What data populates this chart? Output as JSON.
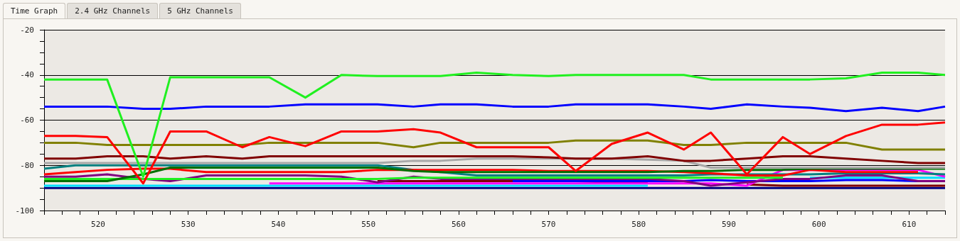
{
  "chart_data": {
    "type": "line",
    "annotations": [
      "Time Graph",
      "2.4 GHz Channels",
      "5 GHz Channels"
    ],
    "x": [
      514,
      517.5,
      521,
      525,
      528,
      532,
      536,
      539,
      543,
      547,
      551,
      555,
      558,
      562,
      566,
      570,
      573,
      577,
      581,
      585,
      588,
      592,
      596,
      599,
      603,
      607,
      611,
      614
    ],
    "xlim": [
      514,
      614
    ],
    "xticks": [
      {
        "value": 514,
        "label": null
      },
      {
        "value": 516,
        "label": null
      },
      {
        "value": 518,
        "label": null
      },
      520,
      {
        "value": 522,
        "label": null
      },
      {
        "value": 524,
        "label": null
      },
      {
        "value": 526,
        "label": null
      },
      {
        "value": 528,
        "label": null
      },
      530,
      {
        "value": 532,
        "label": null
      },
      {
        "value": 534,
        "label": null
      },
      {
        "value": 536,
        "label": null
      },
      {
        "value": 538,
        "label": null
      },
      540,
      {
        "value": 542,
        "label": null
      },
      {
        "value": 544,
        "label": null
      },
      {
        "value": 546,
        "label": null
      },
      {
        "value": 548,
        "label": null
      },
      550,
      {
        "value": 552,
        "label": null
      },
      {
        "value": 554,
        "label": null
      },
      {
        "value": 556,
        "label": null
      },
      {
        "value": 558,
        "label": null
      },
      560,
      {
        "value": 562,
        "label": null
      },
      {
        "value": 564,
        "label": null
      },
      {
        "value": 566,
        "label": null
      },
      {
        "value": 568,
        "label": null
      },
      570,
      {
        "value": 572,
        "label": null
      },
      {
        "value": 574,
        "label": null
      },
      {
        "value": 576,
        "label": null
      },
      {
        "value": 578,
        "label": null
      },
      580,
      {
        "value": 582,
        "label": null
      },
      {
        "value": 584,
        "label": null
      },
      {
        "value": 586,
        "label": null
      },
      {
        "value": 588,
        "label": null
      },
      590,
      {
        "value": 592,
        "label": null
      },
      {
        "value": 594,
        "label": null
      },
      {
        "value": 596,
        "label": null
      },
      {
        "value": 598,
        "label": null
      },
      600,
      {
        "value": 602,
        "label": null
      },
      {
        "value": 604,
        "label": null
      },
      {
        "value": 606,
        "label": null
      },
      {
        "value": 608,
        "label": null
      },
      610,
      {
        "value": 612,
        "label": null
      },
      {
        "value": 614,
        "label": null
      }
    ],
    "ylim": [
      -100,
      -20
    ],
    "yticks": [
      -100,
      {
        "value": -95,
        "label": null
      },
      {
        "value": -90,
        "label": null
      },
      {
        "value": -85,
        "label": null
      },
      -80,
      {
        "value": -75,
        "label": null
      },
      {
        "value": -70,
        "label": null
      },
      {
        "value": -65,
        "label": null
      },
      -60,
      {
        "value": -55,
        "label": null
      },
      {
        "value": -50,
        "label": null
      },
      {
        "value": -45,
        "label": null
      },
      -40,
      {
        "value": -35,
        "label": null
      },
      {
        "value": -30,
        "label": null
      },
      {
        "value": -25,
        "label": null
      },
      -20
    ],
    "grid": "y",
    "line_style": "solid",
    "series": [
      {
        "color": "#000080",
        "values": [
          -90,
          -90,
          -90,
          -90,
          -90,
          -90,
          -90,
          -90,
          -90,
          -90,
          -90,
          -90,
          -90,
          -90,
          -90,
          -90,
          -90,
          -90,
          -90,
          -90,
          -90,
          -90,
          -90,
          -90,
          -90,
          -90,
          -90,
          -90
        ]
      },
      {
        "color": "#00e0ff",
        "values": [
          -89,
          -89,
          -89,
          -89,
          -89,
          -89,
          -89,
          -89,
          -89,
          -89,
          -89,
          -89,
          -89,
          -89,
          -89,
          -89,
          -89,
          -89,
          -89,
          null,
          null,
          null,
          null,
          -85.5,
          -85.5,
          -85.5,
          -85.5,
          -85.5
        ]
      },
      {
        "color": "#800000",
        "values": [
          null,
          null,
          null,
          null,
          null,
          null,
          null,
          null,
          null,
          null,
          -87,
          -87,
          -87,
          -87,
          -87,
          -87,
          -87,
          -87.5,
          -87.5,
          null,
          null,
          -88.5,
          -89,
          -89,
          -89,
          -89,
          -89,
          -89
        ]
      },
      {
        "color": "#0000ff",
        "values": [
          null,
          null,
          null,
          null,
          null,
          null,
          null,
          null,
          null,
          null,
          null,
          null,
          null,
          null,
          -87,
          -87,
          -87,
          -87,
          -87,
          -87,
          -86.5,
          -87,
          -87,
          -87,
          -86.5,
          -86.5,
          -87,
          null
        ]
      },
      {
        "color": "#ff00ff",
        "values": [
          null,
          null,
          null,
          null,
          null,
          null,
          null,
          -88,
          -88,
          -88,
          -88,
          -88,
          -88,
          -88,
          -88,
          -88,
          -88,
          -88,
          -88,
          -88,
          -88,
          -89,
          -82,
          -82,
          -82,
          -82,
          -82,
          -85
        ]
      },
      {
        "color": "#800080",
        "values": [
          -85,
          -85,
          -84,
          -86,
          -87,
          -84.5,
          -84.5,
          -84.5,
          -84.5,
          -85,
          -87.5,
          -85,
          -86,
          -86,
          -86,
          -86,
          -86,
          -86,
          -86,
          -87,
          -89,
          -87.5,
          -86,
          -86,
          -84.5,
          -84.5,
          -87,
          -87
        ]
      },
      {
        "color": "#20f020",
        "values": [
          -86,
          -86,
          -86,
          -86,
          -86,
          -86,
          -86,
          -86,
          -86,
          -86,
          -86,
          -85.5,
          -85.5,
          -85.5,
          -85.5,
          -85.5,
          -85.5,
          -85.5,
          -85.5,
          -85.5,
          -85.5,
          -85.5,
          -85.5,
          null,
          null,
          null,
          null,
          null
        ]
      },
      {
        "color": "#008080",
        "values": [
          -81.5,
          -80,
          -80,
          -80,
          -80,
          -80,
          -80,
          -80,
          -80,
          -80,
          -80,
          -82,
          -83,
          -84.5,
          -84.5,
          -84.5,
          -84.5,
          -84.5,
          -84.5,
          -84.5,
          -84,
          -84,
          -84,
          -84,
          -83.5,
          -83.5,
          -83.5,
          -84
        ]
      },
      {
        "color": "#ff0000",
        "values": [
          -84,
          -83,
          -82,
          -81.5,
          -81.5,
          -83,
          -83,
          -83,
          -83,
          -83,
          -82,
          -82,
          -82,
          -82,
          -82,
          -82.5,
          -82.5,
          -82.5,
          -82.5,
          -83,
          -83.5,
          -84.5,
          -84.5,
          -82,
          -83,
          -83,
          -83,
          null
        ]
      },
      {
        "color": "#007000",
        "values": [
          -87,
          -87,
          -87,
          -84,
          -81,
          -81,
          -81,
          -81,
          -81,
          -81,
          -81,
          -82.5,
          -83,
          -83,
          -83,
          -83,
          -83,
          -83,
          -83,
          -82.5,
          -82.5,
          -82,
          -82,
          -81.5,
          -81.5,
          -81.5,
          -81.5,
          -81.5
        ]
      },
      {
        "color": "#a8a8a8",
        "values": [
          -79,
          -79,
          -79,
          -79,
          -79,
          -79,
          -79,
          -79,
          -79,
          -79,
          -79,
          -78,
          -78,
          -77,
          -77,
          -77,
          -77,
          -77,
          -77.5,
          -78,
          -81,
          -81,
          -81,
          -81,
          -81,
          -81,
          -81,
          -81
        ]
      },
      {
        "color": "#800000",
        "values": [
          -77,
          -77,
          -76,
          -76,
          -77,
          -76,
          -77,
          -76,
          -76,
          -76,
          -76,
          -76,
          -76,
          -76,
          -76,
          -76.5,
          -77,
          -77,
          -76,
          -78,
          -78,
          -77,
          -76,
          -76,
          -77,
          -78,
          -79,
          -79
        ]
      },
      {
        "color": "#808000",
        "values": [
          -70,
          -70,
          -71,
          -71,
          -71,
          -71,
          -71,
          -70,
          -70,
          -70,
          -70,
          -72,
          -70,
          -70,
          -70,
          -70,
          -69,
          -69,
          -69,
          -71,
          -71,
          -70,
          -70,
          -70,
          -70,
          -73,
          -73,
          -73
        ]
      },
      {
        "color": "#ff0000",
        "values": [
          -67,
          -67,
          -67.5,
          -88,
          -65,
          -65,
          -72,
          -67.5,
          -71.5,
          -65,
          -65,
          -64,
          -65.5,
          -72,
          -72,
          -72,
          -82.5,
          -70.5,
          -65.5,
          -73,
          -65.5,
          -84,
          -67.5,
          -75,
          -67,
          -62,
          -62,
          -61
        ]
      },
      {
        "color": "#0000ff",
        "values": [
          -54,
          -54,
          -54,
          -55,
          -55,
          -54,
          -54,
          -54,
          -53,
          -53,
          -53,
          -54,
          -53,
          -53,
          -54,
          -54,
          -53,
          -53,
          -53,
          -54,
          -55,
          -53,
          -54,
          -54.5,
          -56,
          -54.5,
          -56,
          -54
        ]
      },
      {
        "color": "#20f020",
        "values": [
          -42,
          -42,
          -42,
          -85,
          -41,
          -41,
          -41,
          -41,
          -50,
          -40,
          -40.5,
          -40.5,
          -40.5,
          -39,
          -40,
          -40.5,
          -40,
          -40,
          -40,
          -40,
          -42,
          -42,
          -42,
          -42,
          -41.5,
          -39,
          -39,
          -40
        ]
      }
    ]
  }
}
